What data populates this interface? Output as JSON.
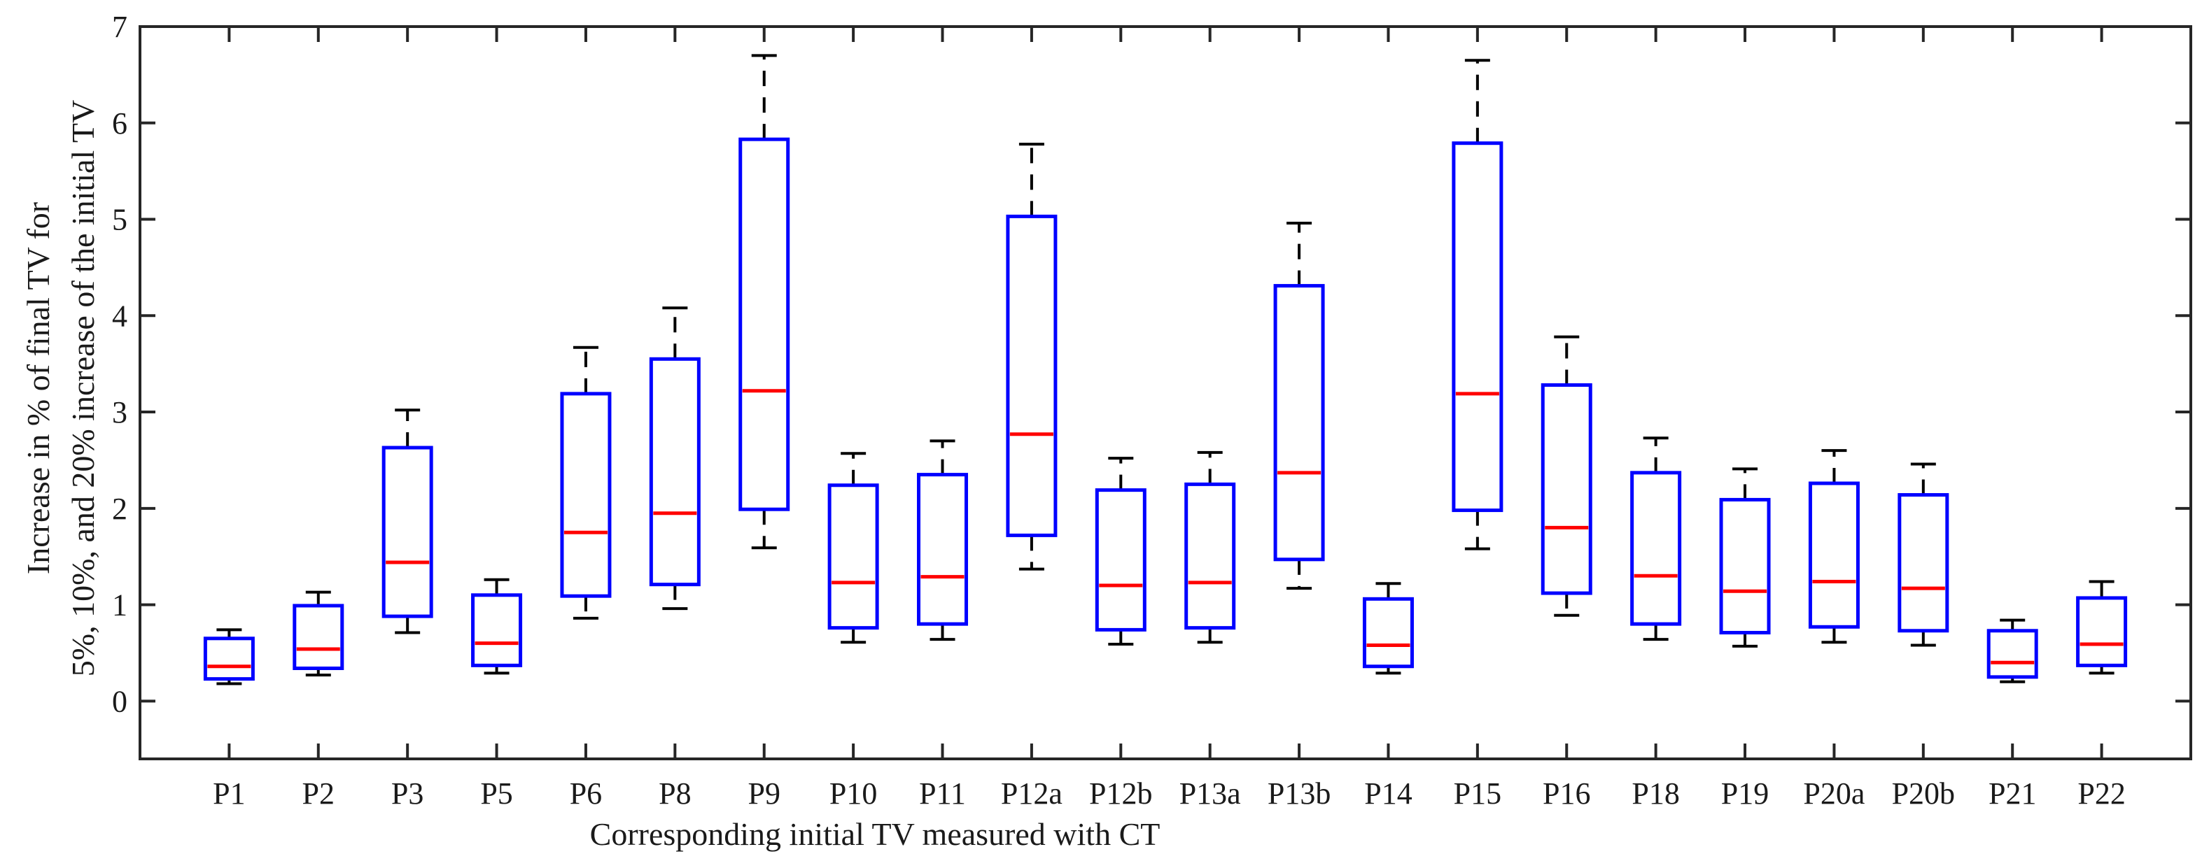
{
  "chart_data": {
    "type": "boxplot",
    "title": "",
    "xlabel": "Corresponding initial TV measured with CT",
    "ylabel_lines": [
      "Increase in % of final TV for",
      "5%, 10%, and 20% increase of the initial TV"
    ],
    "ylim": [
      -0.6,
      7
    ],
    "yticks": [
      0,
      1,
      2,
      3,
      4,
      5,
      6,
      7
    ],
    "categories": [
      "P1",
      "P2",
      "P3",
      "P5",
      "P6",
      "P8",
      "P9",
      "P10",
      "P11",
      "P12a",
      "P12b",
      "P13a",
      "P13b",
      "P14",
      "P15",
      "P16",
      "P18",
      "P19",
      "P20a",
      "P20b",
      "P21",
      "P22"
    ],
    "boxes": [
      {
        "min": 0.18,
        "q1": 0.23,
        "median": 0.36,
        "q3": 0.65,
        "max": 0.74
      },
      {
        "min": 0.27,
        "q1": 0.34,
        "median": 0.54,
        "q3": 0.99,
        "max": 1.13
      },
      {
        "min": 0.71,
        "q1": 0.88,
        "median": 1.44,
        "q3": 2.63,
        "max": 3.02
      },
      {
        "min": 0.29,
        "q1": 0.37,
        "median": 0.6,
        "q3": 1.1,
        "max": 1.26
      },
      {
        "min": 0.86,
        "q1": 1.09,
        "median": 1.75,
        "q3": 3.19,
        "max": 3.67
      },
      {
        "min": 0.96,
        "q1": 1.21,
        "median": 1.95,
        "q3": 3.55,
        "max": 4.08
      },
      {
        "min": 1.59,
        "q1": 1.99,
        "median": 3.22,
        "q3": 5.83,
        "max": 6.7
      },
      {
        "min": 0.61,
        "q1": 0.76,
        "median": 1.23,
        "q3": 2.24,
        "max": 2.57
      },
      {
        "min": 0.64,
        "q1": 0.8,
        "median": 1.29,
        "q3": 2.35,
        "max": 2.7
      },
      {
        "min": 1.37,
        "q1": 1.72,
        "median": 2.77,
        "q3": 5.03,
        "max": 5.78
      },
      {
        "min": 0.59,
        "q1": 0.74,
        "median": 1.2,
        "q3": 2.19,
        "max": 2.52
      },
      {
        "min": 0.61,
        "q1": 0.76,
        "median": 1.23,
        "q3": 2.25,
        "max": 2.58
      },
      {
        "min": 1.17,
        "q1": 1.47,
        "median": 2.37,
        "q3": 4.31,
        "max": 4.96
      },
      {
        "min": 0.29,
        "q1": 0.36,
        "median": 0.58,
        "q3": 1.06,
        "max": 1.22
      },
      {
        "min": 1.58,
        "q1": 1.98,
        "median": 3.19,
        "q3": 5.79,
        "max": 6.65
      },
      {
        "min": 0.89,
        "q1": 1.12,
        "median": 1.8,
        "q3": 3.28,
        "max": 3.78
      },
      {
        "min": 0.64,
        "q1": 0.8,
        "median": 1.3,
        "q3": 2.37,
        "max": 2.73
      },
      {
        "min": 0.57,
        "q1": 0.71,
        "median": 1.14,
        "q3": 2.09,
        "max": 2.41
      },
      {
        "min": 0.61,
        "q1": 0.77,
        "median": 1.24,
        "q3": 2.26,
        "max": 2.6
      },
      {
        "min": 0.58,
        "q1": 0.73,
        "median": 1.17,
        "q3": 2.14,
        "max": 2.46
      },
      {
        "min": 0.2,
        "q1": 0.25,
        "median": 0.4,
        "q3": 0.73,
        "max": 0.84
      },
      {
        "min": 0.29,
        "q1": 0.37,
        "median": 0.59,
        "q3": 1.07,
        "max": 1.24
      }
    ],
    "colors": {
      "box": "#0000ff",
      "median": "#ff0000",
      "whisker": "#000000",
      "axis": "#262626"
    }
  }
}
